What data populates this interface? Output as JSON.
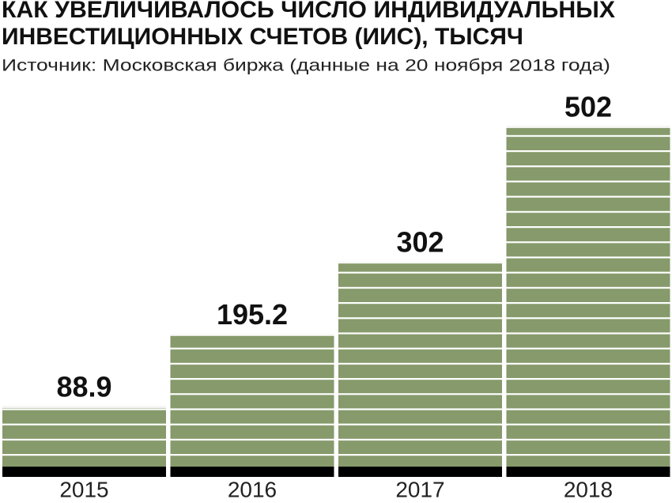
{
  "chart_data": {
    "type": "bar",
    "title": [
      "КАК УВЕЛИЧИВАЛОСЬ ЧИСЛО ИНДИВИДУАЛЬНЫХ",
      "ИНВЕСТИЦИОННЫХ СЧЕТОВ (ИИС), ТЫСЯЧ"
    ],
    "subtitle": "Источник: Московская биржа (данные на 20 ноября 2018 года)",
    "categories": [
      "2015",
      "2016",
      "2017",
      "2018"
    ],
    "values": [
      88.9,
      195.2,
      302,
      502
    ],
    "color": "#869a6b"
  }
}
